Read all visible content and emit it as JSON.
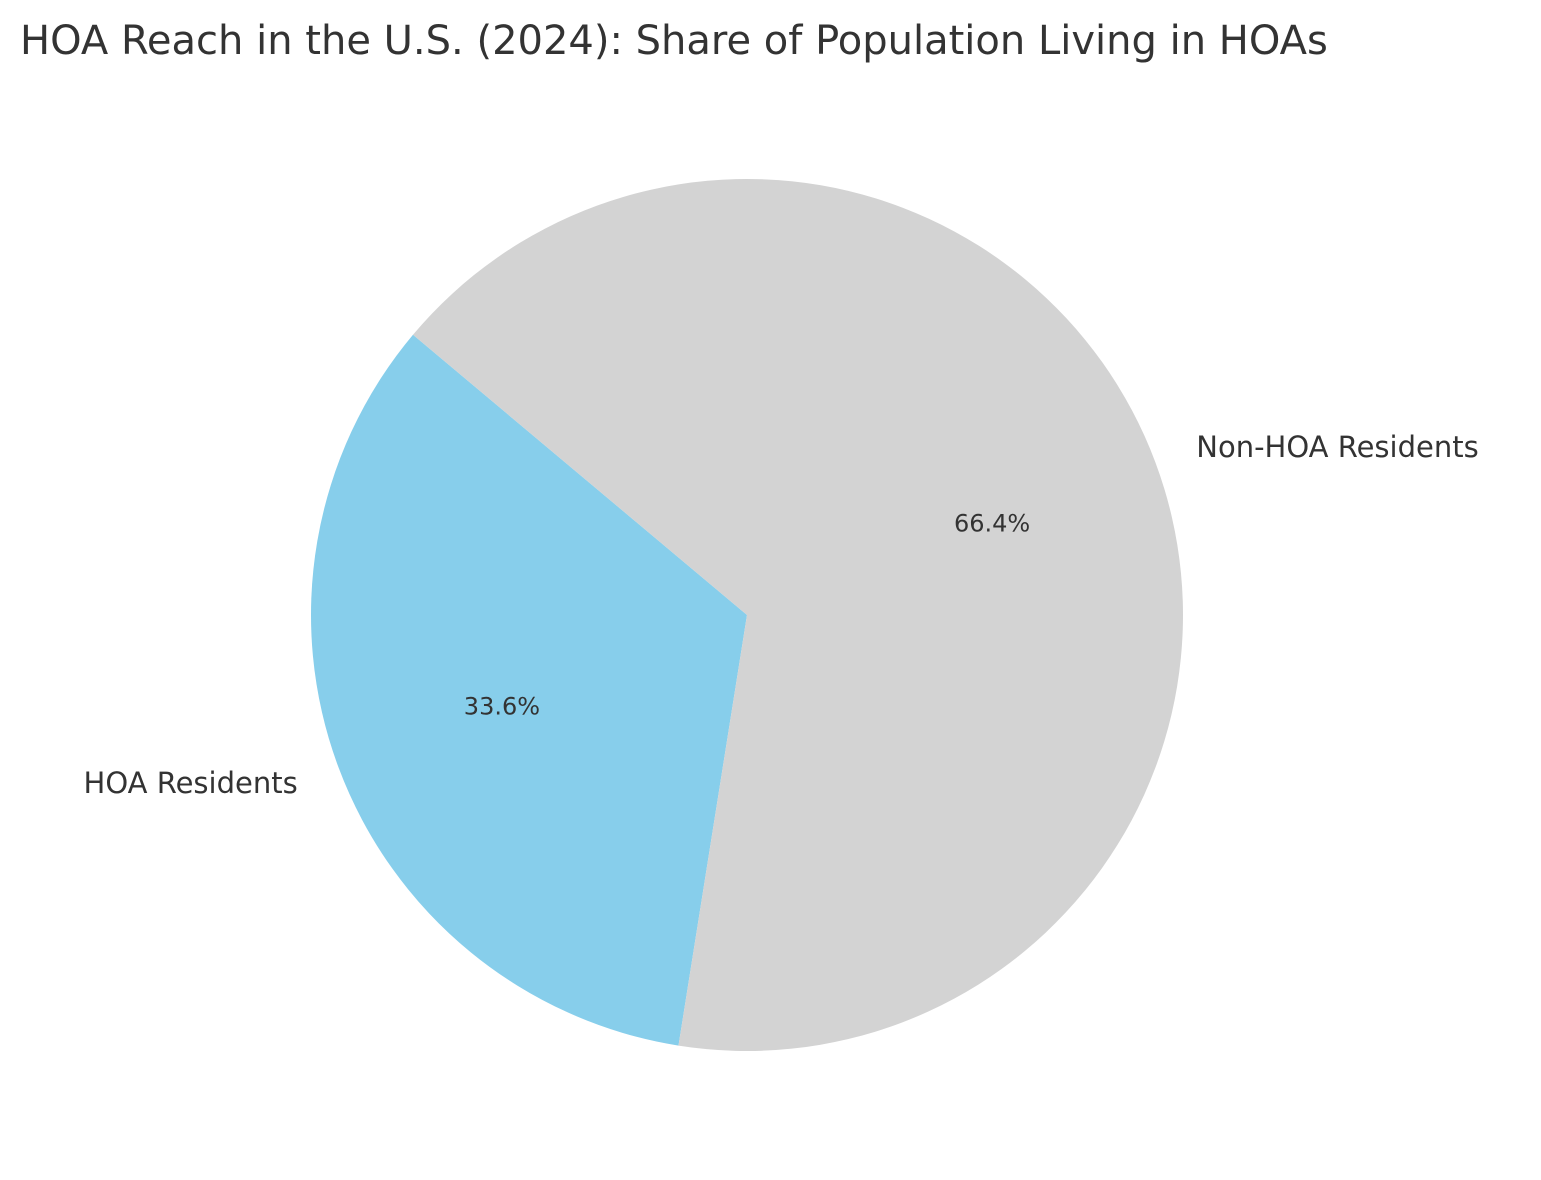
{
  "chart_data": {
    "type": "pie",
    "title": "HOA Reach in the U.S. (2024): Share of Population Living in HOAs",
    "categories": [
      "HOA Residents",
      "Non-HOA Residents"
    ],
    "values": [
      33.6,
      66.4
    ],
    "value_labels": [
      "33.6%",
      "66.4%"
    ],
    "colors": [
      "#87CEEB",
      "#D3D3D3"
    ],
    "start_angle_deg": 140,
    "direction": "counterclockwise",
    "legend": "none"
  }
}
